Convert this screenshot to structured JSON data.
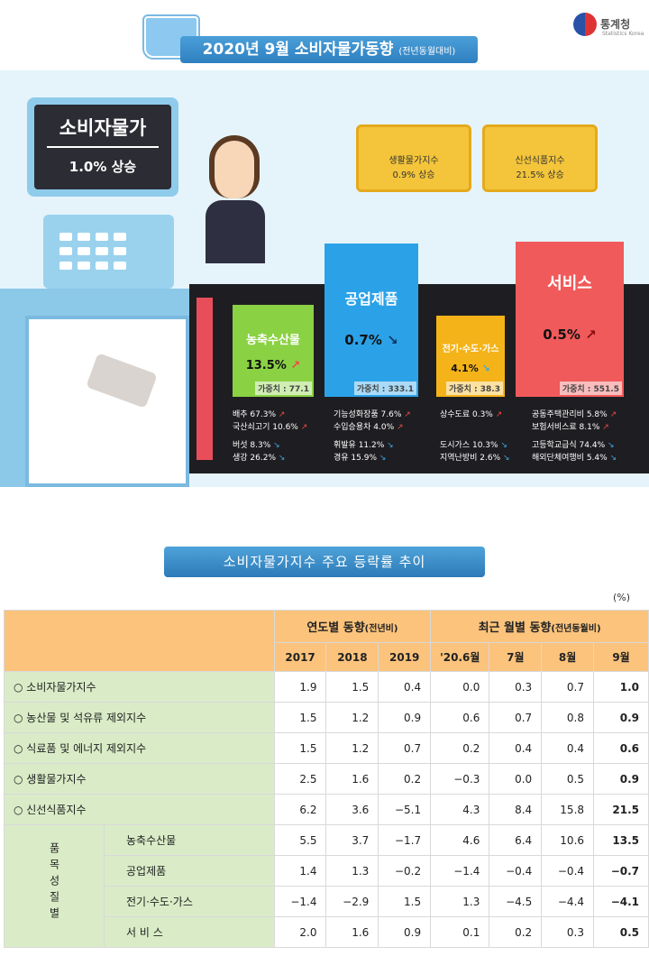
{
  "header": {
    "title": "2020년 9월 소비자물가동향",
    "subtitle": "(전년동월대비)",
    "logo": "통계청",
    "logo_sub": "Statistics Korea"
  },
  "monitor": {
    "title": "소비자물가",
    "value": "1.0% 상승"
  },
  "baskets": [
    {
      "label": "생활물가지수",
      "value": "0.9% 상승"
    },
    {
      "label": "신선식품지수",
      "value": "21.5% 상승"
    }
  ],
  "categories": [
    {
      "name": "농축수산물",
      "value": "13.5%",
      "weight": "가중치 : 77.1",
      "dir": "up"
    },
    {
      "name": "공업제품",
      "value": "0.7%",
      "weight": "가중치 : 333.1",
      "dir": "down"
    },
    {
      "name": "전기·수도·가스",
      "value": "4.1%",
      "weight": "가중치 : 38.3",
      "dir": "down"
    },
    {
      "name": "서비스",
      "value": "0.5%",
      "weight": "가중치 : 551.5",
      "dir": "up"
    }
  ],
  "items": {
    "c1": [
      "배추 67.3%",
      "국산쇠고기 10.6%",
      "버섯 8.3%",
      "생강 26.2%"
    ],
    "c2": [
      "기능성화장품 7.6%",
      "수입승용차 4.0%",
      "휘발유 11.2%",
      "경유 15.9%"
    ],
    "c3": [
      "상수도료 0.3%",
      "도시가스 10.3%",
      "지역난방비 2.6%"
    ],
    "c4": [
      "공동주택관리비 5.8%",
      "보험서비스료 8.1%",
      "고등학교급식 74.4%",
      "해외단체여행비 5.4%"
    ]
  },
  "section_title": "소비자물가지수 주요 등락률 추이",
  "unit": "(%)",
  "table": {
    "group_annual": "연도별 동향",
    "group_annual_note": "(전년비)",
    "group_monthly": "최근 월별 동향",
    "group_monthly_note": "(전년동월비)",
    "cols": [
      "2017",
      "2018",
      "2019",
      "'20.6월",
      "7월",
      "8월",
      "9월"
    ],
    "rows": [
      {
        "label": "○ 소비자물가지수",
        "values": [
          "1.9",
          "1.5",
          "0.4",
          "0.0",
          "0.3",
          "0.7",
          "1.0"
        ]
      },
      {
        "label": "○ 농산물 및 석유류 제외지수",
        "values": [
          "1.5",
          "1.2",
          "0.9",
          "0.6",
          "0.7",
          "0.8",
          "0.9"
        ]
      },
      {
        "label": "○ 식료품 및 에너지 제외지수",
        "values": [
          "1.5",
          "1.2",
          "0.7",
          "0.2",
          "0.4",
          "0.4",
          "0.6"
        ]
      },
      {
        "label": "○ 생활물가지수",
        "values": [
          "2.5",
          "1.6",
          "0.2",
          "−0.3",
          "0.0",
          "0.5",
          "0.9"
        ]
      },
      {
        "label": "○ 신선식품지수",
        "values": [
          "6.2",
          "3.6",
          "−5.1",
          "4.3",
          "8.4",
          "15.8",
          "21.5"
        ]
      }
    ],
    "group_label": "품목성질별",
    "subrows": [
      {
        "label": "농축수산물",
        "values": [
          "5.5",
          "3.7",
          "−1.7",
          "4.6",
          "6.4",
          "10.6",
          "13.5"
        ]
      },
      {
        "label": "공업제품",
        "values": [
          "1.4",
          "1.3",
          "−0.2",
          "−1.4",
          "−0.4",
          "−0.4",
          "−0.7"
        ]
      },
      {
        "label": "전기·수도·가스",
        "values": [
          "−1.4",
          "−2.9",
          "1.5",
          "1.3",
          "−4.5",
          "−4.4",
          "−4.1"
        ]
      },
      {
        "label": "서 비 스",
        "values": [
          "2.0",
          "1.6",
          "0.9",
          "0.1",
          "0.2",
          "0.3",
          "0.5"
        ]
      }
    ]
  }
}
